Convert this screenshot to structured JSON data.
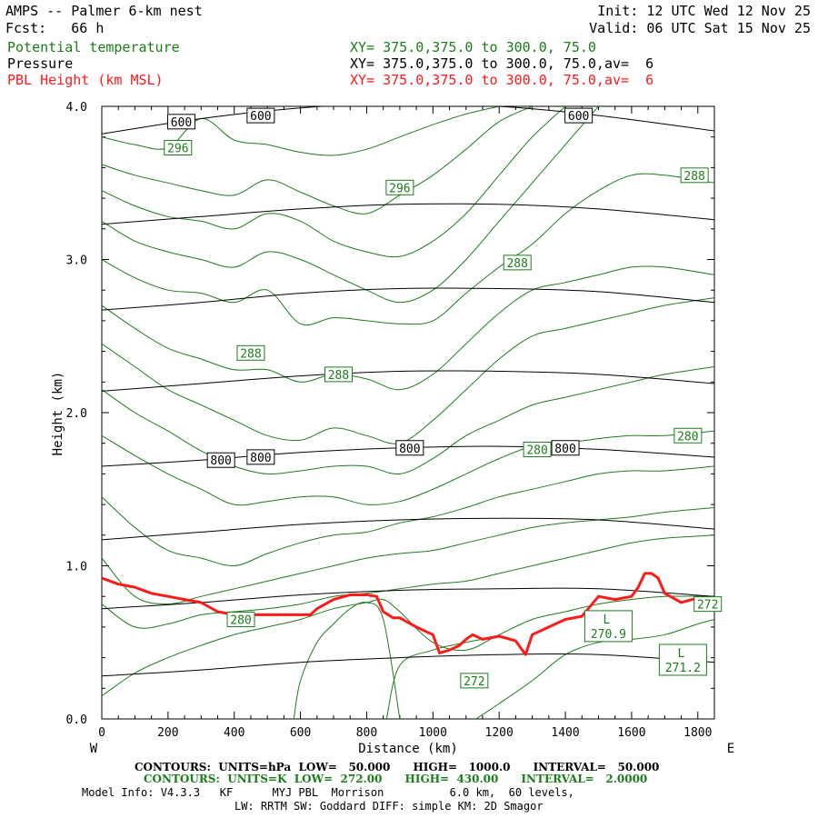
{
  "header": {
    "title": "AMPS -- Palmer 6-km nest",
    "fcst": "Fcst:   66 h",
    "init": "Init: 12 UTC Wed 12 Nov 25",
    "valid": "Valid: 06 UTC Sat 15 Nov 25",
    "fields": [
      {
        "name": "Potential temperature",
        "xy": "XY= 375.0,375.0 to 300.0, 75.0",
        "color": "#1c7c1c"
      },
      {
        "name": "Pressure",
        "xy": "XY= 375.0,375.0 to 300.0, 75.0,av=  6",
        "color": "#000000"
      },
      {
        "name": "PBL Height (km MSL)",
        "xy": "XY= 375.0,375.0 to 300.0, 75.0,av=  6",
        "color": "#ff1a1a"
      }
    ]
  },
  "footer": {
    "pressure_contours": "CONTOURS:  UNITS=hPa  LOW=   50.000      HIGH=   1000.0      INTERVAL=   50.000",
    "theta_contours": "CONTOURS:  UNITS=K  LOW=  272.00      HIGH=  430.00      INTERVAL=   2.0000",
    "model_info": "Model Info: V4.3.3   KF      MYJ PBL  Morrison          6.0 km,  60 levels,",
    "physics": "LW: RRTM SW: Goddard DIFF: simple KM: 2D Smagor"
  },
  "chart_data": {
    "type": "line",
    "title": "Cross section of potential temperature, pressure and PBL height",
    "xlabel": "Distance (km)",
    "ylabel": "Height (km)",
    "xlim": [
      0,
      1850
    ],
    "ylim": [
      0,
      4
    ],
    "x_ticks": [
      "0",
      "200",
      "400",
      "600",
      "800",
      "1000",
      "1200",
      "1400",
      "1600",
      "1800"
    ],
    "y_ticks": [
      "0.0",
      "1.0",
      "2.0",
      "3.0",
      "4.0"
    ],
    "x_end_labels": {
      "left": "W",
      "right": "E"
    },
    "pressure_lines": [
      {
        "level": 600,
        "x": [
          0,
          300,
          600,
          900,
          1200,
          1500,
          1850
        ],
        "y": [
          3.82,
          3.92,
          3.99,
          4.02,
          4.0,
          3.94,
          3.84
        ]
      },
      {
        "level": 650,
        "x": [
          0,
          300,
          600,
          900,
          1200,
          1500,
          1850
        ],
        "y": [
          3.23,
          3.28,
          3.33,
          3.36,
          3.36,
          3.33,
          3.26
        ]
      },
      {
        "level": 700,
        "x": [
          0,
          300,
          600,
          900,
          1200,
          1500,
          1850
        ],
        "y": [
          2.67,
          2.72,
          2.78,
          2.81,
          2.81,
          2.79,
          2.72
        ]
      },
      {
        "level": 750,
        "x": [
          0,
          300,
          600,
          900,
          1200,
          1500,
          1850
        ],
        "y": [
          2.14,
          2.19,
          2.24,
          2.27,
          2.27,
          2.25,
          2.19
        ]
      },
      {
        "level": 800,
        "x": [
          0,
          300,
          600,
          900,
          1200,
          1500,
          1850
        ],
        "y": [
          1.65,
          1.69,
          1.74,
          1.77,
          1.78,
          1.76,
          1.71
        ]
      },
      {
        "level": 850,
        "x": [
          0,
          300,
          600,
          900,
          1200,
          1500,
          1850
        ],
        "y": [
          1.17,
          1.22,
          1.27,
          1.3,
          1.31,
          1.3,
          1.24
        ]
      },
      {
        "level": 900,
        "x": [
          0,
          300,
          600,
          900,
          1200,
          1500,
          1850
        ],
        "y": [
          0.72,
          0.76,
          0.81,
          0.84,
          0.85,
          0.85,
          0.8
        ]
      },
      {
        "level": 950,
        "x": [
          0,
          300,
          600,
          900,
          1200,
          1500,
          1850
        ],
        "y": [
          0.28,
          0.32,
          0.37,
          0.4,
          0.42,
          0.42,
          0.37
        ]
      }
    ],
    "pressure_labels": [
      {
        "text": "600",
        "x": 240,
        "y": 3.9
      },
      {
        "text": "600",
        "x": 480,
        "y": 3.94
      },
      {
        "text": "600",
        "x": 1440,
        "y": 3.94
      },
      {
        "text": "800",
        "x": 360,
        "y": 1.69
      },
      {
        "text": "800",
        "x": 480,
        "y": 1.71
      },
      {
        "text": "800",
        "x": 930,
        "y": 1.77
      },
      {
        "text": "800",
        "x": 1400,
        "y": 1.77
      }
    ],
    "theta_lines": [
      {
        "level": 296,
        "x": [
          0,
          100,
          200,
          300,
          400,
          500,
          600,
          700,
          800,
          900,
          1000,
          1100,
          1200
        ],
        "y": [
          3.8,
          3.75,
          3.73,
          3.92,
          3.78,
          3.75,
          3.7,
          3.68,
          3.72,
          3.8,
          3.88,
          3.95,
          4.0
        ]
      },
      {
        "level": 294,
        "x": [
          0,
          100,
          200,
          300,
          400,
          500,
          600,
          700,
          800,
          900,
          1000,
          1100,
          1200,
          1300
        ],
        "y": [
          3.62,
          3.55,
          3.5,
          3.45,
          3.42,
          3.52,
          3.44,
          3.35,
          3.3,
          3.42,
          3.55,
          3.72,
          3.9,
          4.0
        ]
      },
      {
        "level": 292,
        "x": [
          0,
          100,
          200,
          300,
          400,
          500,
          600,
          700,
          800,
          900,
          1000,
          1100,
          1200,
          1300,
          1400
        ],
        "y": [
          3.45,
          3.35,
          3.28,
          3.25,
          3.2,
          3.3,
          3.25,
          3.12,
          3.05,
          3.02,
          3.12,
          3.3,
          3.55,
          3.8,
          4.0
        ]
      },
      {
        "level": 290,
        "x": [
          0,
          100,
          200,
          300,
          400,
          500,
          600,
          700,
          800,
          900,
          1000,
          1100,
          1200,
          1300,
          1400,
          1500
        ],
        "y": [
          3.25,
          3.12,
          3.05,
          3.0,
          2.95,
          3.05,
          3.0,
          2.9,
          2.8,
          2.72,
          2.8,
          3.0,
          3.25,
          3.5,
          3.75,
          4.0
        ]
      },
      {
        "level": 288,
        "x": [
          0,
          100,
          200,
          300,
          400,
          500,
          600,
          700,
          800,
          900,
          1000,
          1100,
          1200,
          1300,
          1400,
          1500,
          1600,
          1700,
          1850
        ],
        "y": [
          3.0,
          2.88,
          2.8,
          2.78,
          2.72,
          2.8,
          2.58,
          2.62,
          2.6,
          2.58,
          2.6,
          2.78,
          2.95,
          3.1,
          3.3,
          3.45,
          3.55,
          3.55,
          3.5
        ]
      },
      {
        "level": 286,
        "x": [
          0,
          100,
          200,
          300,
          400,
          500,
          600,
          700,
          800,
          900,
          1000,
          1100,
          1200,
          1300,
          1400,
          1500,
          1600,
          1700,
          1850
        ],
        "y": [
          2.7,
          2.55,
          2.42,
          2.35,
          2.28,
          2.28,
          2.2,
          2.25,
          2.22,
          2.15,
          2.25,
          2.45,
          2.65,
          2.8,
          2.85,
          2.9,
          2.95,
          2.95,
          2.9
        ]
      },
      {
        "level": 284,
        "x": [
          0,
          100,
          200,
          300,
          400,
          500,
          600,
          700,
          800,
          900,
          1000,
          1100,
          1200,
          1300,
          1400,
          1500,
          1600,
          1700,
          1850
        ],
        "y": [
          2.45,
          2.3,
          2.15,
          2.05,
          1.95,
          1.85,
          1.82,
          1.9,
          1.85,
          1.8,
          1.95,
          2.15,
          2.35,
          2.5,
          2.55,
          2.6,
          2.65,
          2.7,
          2.75
        ]
      },
      {
        "level": 282,
        "x": [
          0,
          100,
          200,
          300,
          400,
          500,
          600,
          700,
          800,
          900,
          1000,
          1100,
          1200,
          1300,
          1400,
          1500,
          1600,
          1700,
          1850
        ],
        "y": [
          2.15,
          2.0,
          1.88,
          1.75,
          1.65,
          1.6,
          1.62,
          1.65,
          1.65,
          1.6,
          1.7,
          1.85,
          1.95,
          2.05,
          2.1,
          2.15,
          2.2,
          2.25,
          2.3
        ]
      },
      {
        "level": 280,
        "x": [
          0,
          100,
          200,
          300,
          400,
          500,
          600,
          700,
          800,
          900,
          1000,
          1100,
          1200,
          1300,
          1400,
          1500,
          1600,
          1700,
          1850
        ],
        "y": [
          1.85,
          1.72,
          1.6,
          1.5,
          1.4,
          1.42,
          1.45,
          1.45,
          1.4,
          1.42,
          1.5,
          1.6,
          1.7,
          1.78,
          1.8,
          1.83,
          1.85,
          1.85,
          1.88
        ]
      },
      {
        "level": 278,
        "x": [
          0,
          100,
          200,
          300,
          400,
          500,
          600,
          700,
          800,
          900,
          1000,
          1100,
          1200,
          1300,
          1400,
          1500,
          1600,
          1700,
          1850
        ],
        "y": [
          1.45,
          1.25,
          1.1,
          1.05,
          1.0,
          1.08,
          1.15,
          1.2,
          1.22,
          1.28,
          1.32,
          1.38,
          1.45,
          1.5,
          1.55,
          1.6,
          1.62,
          1.62,
          1.65
        ]
      },
      {
        "level": 276,
        "x": [
          0,
          100,
          200,
          300,
          400,
          500,
          600,
          700,
          800,
          900,
          1000,
          1100,
          1200,
          1300,
          1400,
          1500,
          1600,
          1700,
          1850
        ],
        "y": [
          1.05,
          0.8,
          0.75,
          0.8,
          0.85,
          0.9,
          0.95,
          1.0,
          1.05,
          1.08,
          1.1,
          1.15,
          1.2,
          1.25,
          1.28,
          1.3,
          1.32,
          1.35,
          1.38
        ]
      },
      {
        "level": 274,
        "x": [
          0,
          100,
          200,
          300,
          400,
          500,
          600,
          700,
          800,
          900,
          1000,
          1100,
          1200,
          1300,
          1400,
          1500,
          1600,
          1700,
          1850
        ],
        "y": [
          0.75,
          0.6,
          0.62,
          0.68,
          0.7,
          0.72,
          0.75,
          0.8,
          0.82,
          0.85,
          0.88,
          0.9,
          0.95,
          1.0,
          1.05,
          1.1,
          1.15,
          1.18,
          1.2
        ]
      },
      {
        "level": 272,
        "x": [
          0,
          100,
          200,
          300,
          400,
          500,
          600,
          700,
          800,
          850,
          900,
          1000,
          1100,
          1200,
          1300,
          1400,
          1500,
          1600,
          1700,
          1850
        ],
        "y": [
          0.15,
          0.3,
          0.4,
          0.48,
          0.55,
          0.6,
          0.65,
          0.72,
          0.76,
          0.78,
          0.7,
          0.5,
          0.45,
          0.55,
          0.65,
          0.7,
          0.75,
          0.78,
          0.8,
          0.8
        ]
      },
      {
        "level": 272,
        "x": [
          580,
          600,
          650,
          700,
          750,
          800,
          850,
          900
        ],
        "y": [
          0.0,
          0.25,
          0.5,
          0.62,
          0.72,
          0.76,
          0.65,
          0.0
        ]
      },
      {
        "level": 272,
        "x": [
          860,
          900,
          1000,
          1100,
          1150
        ],
        "y": [
          0.0,
          0.35,
          0.45,
          0.5,
          0.52
        ]
      },
      {
        "level": 270,
        "x": [
          1130,
          1200,
          1300,
          1400,
          1500,
          1600,
          1700,
          1800,
          1850
        ],
        "y": [
          0.0,
          0.1,
          0.25,
          0.42,
          0.5,
          0.52,
          0.55,
          0.62,
          0.65
        ]
      }
    ],
    "theta_labels": [
      {
        "text": "296",
        "x": 230,
        "y": 3.73
      },
      {
        "text": "296",
        "x": 900,
        "y": 3.47
      },
      {
        "text": "288",
        "x": 1790,
        "y": 3.55
      },
      {
        "text": "288",
        "x": 1255,
        "y": 2.98
      },
      {
        "text": "288",
        "x": 450,
        "y": 2.39
      },
      {
        "text": "288",
        "x": 715,
        "y": 2.25
      },
      {
        "text": "280",
        "x": 1770,
        "y": 1.85
      },
      {
        "text": "280",
        "x": 1315,
        "y": 1.76
      },
      {
        "text": "280",
        "x": 420,
        "y": 0.65
      },
      {
        "text": "272",
        "x": 1830,
        "y": 0.75
      },
      {
        "text": "272",
        "x": 1125,
        "y": 0.25
      }
    ],
    "minima": [
      {
        "label": "L",
        "value": "270.9",
        "x": 1530,
        "y": 0.6
      },
      {
        "label": "L",
        "value": "271.2",
        "x": 1755,
        "y": 0.38
      }
    ],
    "pbl_height": {
      "name": "PBL Height (km MSL)",
      "x": [
        0,
        50,
        100,
        150,
        200,
        250,
        300,
        350,
        400,
        450,
        500,
        550,
        600,
        630,
        650,
        700,
        750,
        800,
        830,
        850,
        880,
        900,
        950,
        1000,
        1020,
        1050,
        1080,
        1100,
        1120,
        1150,
        1200,
        1250,
        1280,
        1300,
        1350,
        1400,
        1450,
        1500,
        1550,
        1600,
        1620,
        1640,
        1660,
        1680,
        1700,
        1750,
        1800,
        1850
      ],
      "y": [
        0.92,
        0.88,
        0.86,
        0.82,
        0.8,
        0.78,
        0.76,
        0.7,
        0.68,
        0.68,
        0.68,
        0.68,
        0.68,
        0.68,
        0.72,
        0.78,
        0.81,
        0.81,
        0.8,
        0.7,
        0.66,
        0.66,
        0.6,
        0.55,
        0.43,
        0.45,
        0.48,
        0.52,
        0.55,
        0.52,
        0.54,
        0.51,
        0.42,
        0.55,
        0.6,
        0.65,
        0.67,
        0.8,
        0.78,
        0.8,
        0.86,
        0.95,
        0.95,
        0.92,
        0.82,
        0.76,
        0.79,
        0.79
      ]
    }
  }
}
